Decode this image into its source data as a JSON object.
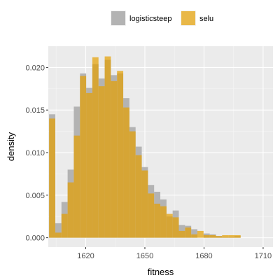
{
  "chart_data": {
    "type": "histogram",
    "xlabel": "fitness",
    "ylabel": "density",
    "x_ticks": [
      1620,
      1650,
      1680,
      1710
    ],
    "y_ticks": [
      0.0,
      0.005,
      0.01,
      0.015,
      0.02
    ],
    "y_tick_labels": [
      "0.000",
      "0.005",
      "0.010",
      "0.015",
      "0.020"
    ],
    "xlim": [
      1601,
      1715
    ],
    "ylim": [
      -0.0011,
      0.0225
    ],
    "bin_width": 3.135,
    "bin_start": 1601.4,
    "grid": true,
    "legend_position": "top",
    "series": [
      {
        "name": "logisticsteep",
        "color": "#b3b3b3",
        "values": [
          0.0145,
          0.0017,
          0.0042,
          0.008,
          0.0154,
          0.0193,
          0.0176,
          0.0204,
          0.0187,
          0.0209,
          0.0191,
          0.0193,
          0.0164,
          0.013,
          0.0107,
          0.0083,
          0.0062,
          0.0054,
          0.0045,
          0.0025,
          0.0032,
          0.0015,
          0.0014,
          0.001,
          0.0,
          0.0005,
          0.0004,
          0.0002,
          0.0001,
          0.0001,
          0.0002
        ]
      },
      {
        "name": "selu",
        "color": "#e69f00",
        "values": [
          0.014,
          0.0006,
          0.0028,
          0.0065,
          0.012,
          0.019,
          0.017,
          0.0212,
          0.0178,
          0.0213,
          0.0184,
          0.0196,
          0.0153,
          0.0125,
          0.0097,
          0.0079,
          0.0052,
          0.004,
          0.0037,
          0.0028,
          0.0024,
          0.0008,
          0.0012,
          0.0004,
          0.0008,
          0.0003,
          0.0003,
          0.0002,
          0.0003,
          0.0003,
          0.0003
        ]
      }
    ]
  }
}
